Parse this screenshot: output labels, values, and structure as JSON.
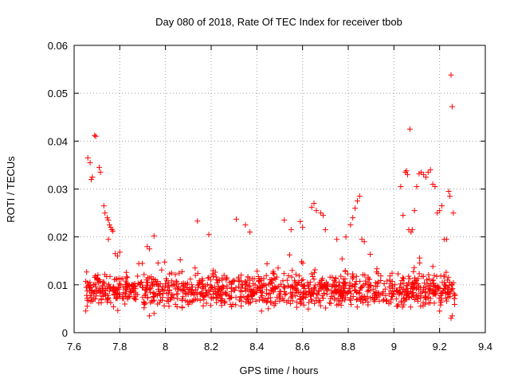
{
  "chart_data": {
    "type": "scatter",
    "title": "Day 080 of 2018, Rate Of TEC Index for receiver tbob",
    "xlabel": "GPS time / hours",
    "ylabel": "ROTI / TECUs",
    "xlim": [
      7.6,
      9.4
    ],
    "ylim": [
      0,
      0.06
    ],
    "xticks": [
      7.6,
      7.8,
      8,
      8.2,
      8.4,
      8.6,
      8.8,
      9,
      9.2,
      9.4
    ],
    "xtick_labels": [
      "7.6",
      "7.8",
      "8",
      "8.2",
      "8.4",
      "8.6",
      "8.8",
      "9",
      "9.2",
      "9.4"
    ],
    "yticks": [
      0,
      0.01,
      0.02,
      0.03,
      0.04,
      0.05,
      0.06
    ],
    "ytick_labels": [
      "0",
      "0.01",
      "0.02",
      "0.03",
      "0.04",
      "0.05",
      "0.06"
    ],
    "grid": true,
    "marker": "plus",
    "color": "#ff0000",
    "series": [
      {
        "name": "ROTI",
        "points": [
          [
            7.66,
            0.0365
          ],
          [
            7.67,
            0.0355
          ],
          [
            7.675,
            0.032
          ],
          [
            7.68,
            0.0325
          ],
          [
            7.69,
            0.0412
          ],
          [
            7.695,
            0.041
          ],
          [
            7.71,
            0.0345
          ],
          [
            7.715,
            0.0335
          ],
          [
            7.73,
            0.0265
          ],
          [
            7.735,
            0.025
          ],
          [
            7.745,
            0.024
          ],
          [
            7.75,
            0.0235
          ],
          [
            7.755,
            0.0225
          ],
          [
            7.76,
            0.022
          ],
          [
            7.765,
            0.0215
          ],
          [
            7.77,
            0.0212
          ],
          [
            7.75,
            0.0195
          ],
          [
            7.78,
            0.0165
          ],
          [
            7.79,
            0.016
          ],
          [
            7.8,
            0.0168
          ],
          [
            7.92,
            0.018
          ],
          [
            7.93,
            0.0175
          ],
          [
            7.95,
            0.0202
          ],
          [
            8.14,
            0.0233
          ],
          [
            8.19,
            0.0205
          ],
          [
            8.31,
            0.0237
          ],
          [
            8.35,
            0.0225
          ],
          [
            8.37,
            0.021
          ],
          [
            8.52,
            0.0235
          ],
          [
            8.55,
            0.0215
          ],
          [
            8.59,
            0.0232
          ],
          [
            8.6,
            0.022
          ],
          [
            8.64,
            0.0262
          ],
          [
            8.65,
            0.027
          ],
          [
            8.66,
            0.0255
          ],
          [
            8.68,
            0.025
          ],
          [
            8.69,
            0.0245
          ],
          [
            8.7,
            0.0215
          ],
          [
            8.75,
            0.0195
          ],
          [
            8.79,
            0.02
          ],
          [
            8.81,
            0.0225
          ],
          [
            8.82,
            0.024
          ],
          [
            8.83,
            0.026
          ],
          [
            8.84,
            0.0275
          ],
          [
            8.85,
            0.0285
          ],
          [
            8.86,
            0.0195
          ],
          [
            8.87,
            0.019
          ],
          [
            9.03,
            0.0305
          ],
          [
            9.04,
            0.0245
          ],
          [
            9.05,
            0.0335
          ],
          [
            9.055,
            0.0338
          ],
          [
            9.06,
            0.033
          ],
          [
            9.065,
            0.0215
          ],
          [
            9.07,
            0.0425
          ],
          [
            9.075,
            0.021
          ],
          [
            9.08,
            0.0215
          ],
          [
            9.09,
            0.0255
          ],
          [
            9.1,
            0.0305
          ],
          [
            9.11,
            0.0332
          ],
          [
            9.12,
            0.0335
          ],
          [
            9.13,
            0.033
          ],
          [
            9.14,
            0.0325
          ],
          [
            9.15,
            0.0335
          ],
          [
            9.16,
            0.034
          ],
          [
            9.17,
            0.031
          ],
          [
            9.18,
            0.0305
          ],
          [
            9.19,
            0.025
          ],
          [
            9.2,
            0.0255
          ],
          [
            9.21,
            0.0265
          ],
          [
            9.22,
            0.0195
          ],
          [
            9.23,
            0.0195
          ],
          [
            9.24,
            0.0295
          ],
          [
            9.245,
            0.0285
          ],
          [
            9.25,
            0.0538
          ],
          [
            9.255,
            0.0472
          ],
          [
            9.26,
            0.025
          ],
          [
            9.255,
            0.0035
          ],
          [
            9.25,
            0.003
          ],
          [
            7.93,
            0.0035
          ],
          [
            7.95,
            0.004
          ],
          [
            8.42,
            0.0045
          ],
          [
            8.45,
            0.005
          ],
          [
            9.2,
            0.0045
          ]
        ]
      }
    ],
    "dense_band": {
      "x_range": [
        7.65,
        9.27
      ],
      "lower": 0.004,
      "upper": 0.0135,
      "count": 1200
    }
  }
}
